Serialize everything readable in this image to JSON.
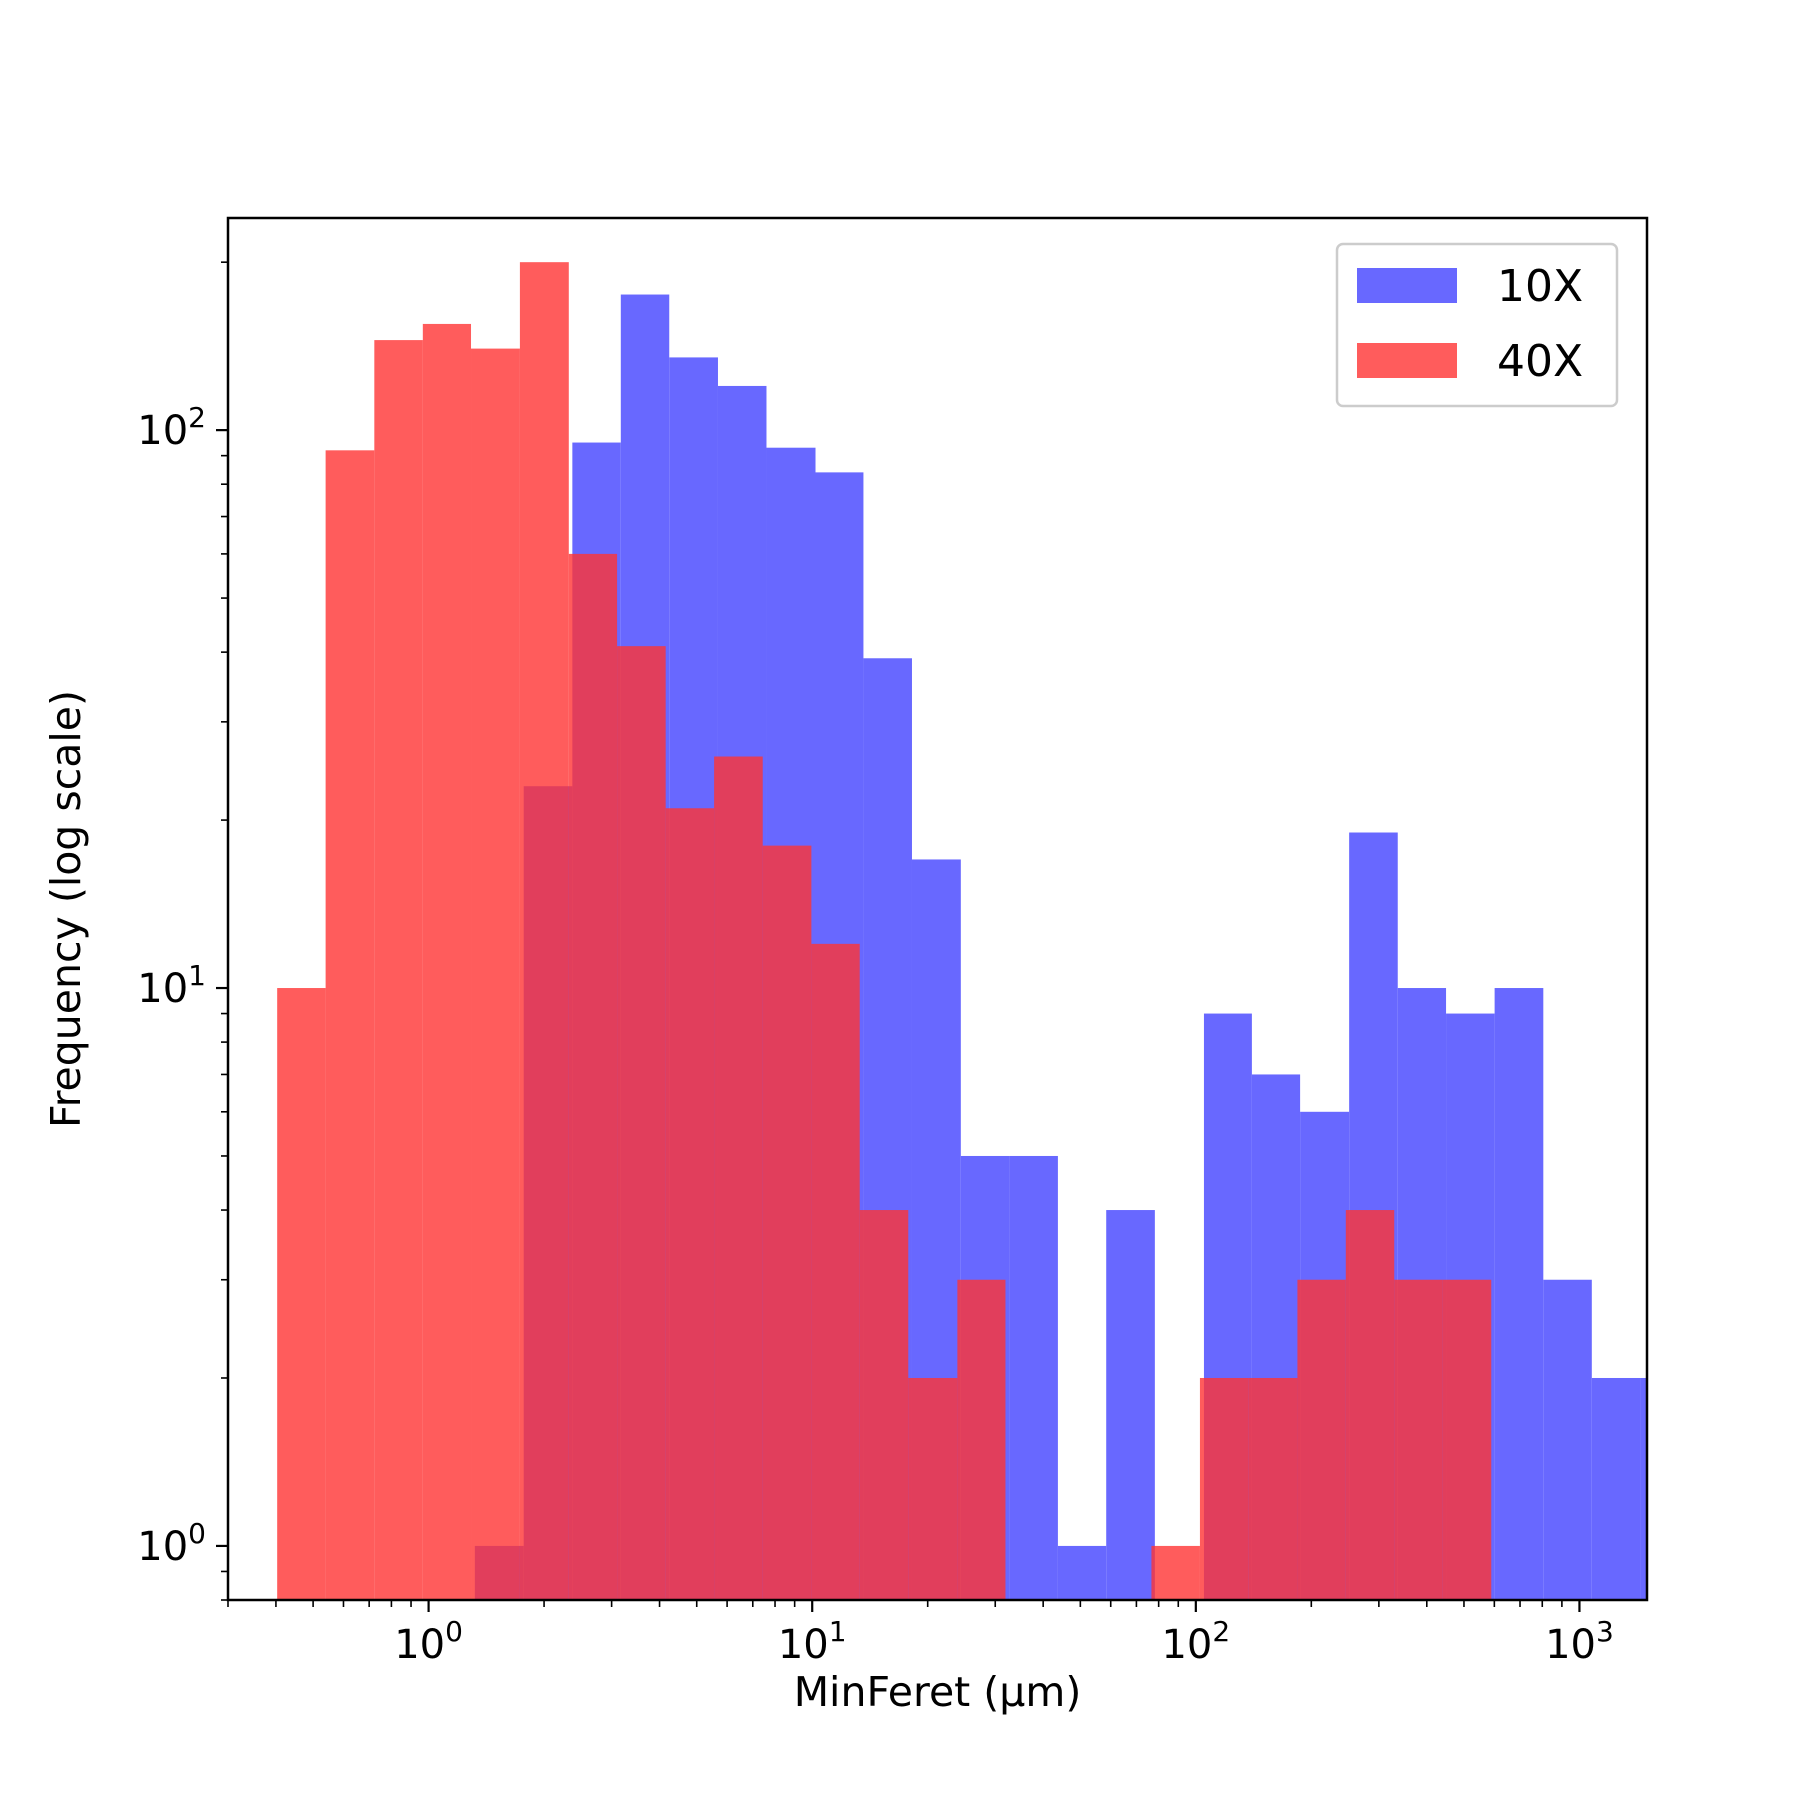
{
  "chart_data": {
    "type": "bar",
    "subtype": "histogram",
    "xscale": "log",
    "yscale": "log",
    "xlabel": "MinFeret (µm)",
    "ylabel": "Frequency (log scale)",
    "xlim": [
      0.3,
      1500
    ],
    "ylim": [
      0.8,
      240
    ],
    "grid": false,
    "legend_position": "top-right",
    "xticks": [
      {
        "value": 1,
        "base": "10",
        "exp": "0"
      },
      {
        "value": 10,
        "base": "10",
        "exp": "1"
      },
      {
        "value": 100,
        "base": "10",
        "exp": "2"
      },
      {
        "value": 1000,
        "base": "10",
        "exp": "3"
      }
    ],
    "yticks": [
      {
        "value": 1,
        "base": "10",
        "exp": "0"
      },
      {
        "value": 10,
        "base": "10",
        "exp": "1"
      },
      {
        "value": 100,
        "base": "10",
        "exp": "2"
      }
    ],
    "series": [
      {
        "name": "10X",
        "color": "#6868ff",
        "bin_edges": [
          1.32,
          1.77,
          2.37,
          3.17,
          4.24,
          5.68,
          7.6,
          10.2,
          13.6,
          18.2,
          24.4,
          32.6,
          43.7,
          58.4,
          78.2,
          105,
          140,
          187,
          251,
          336,
          449,
          601,
          805,
          1077,
          1442,
          1930
        ],
        "values": [
          1,
          23,
          95,
          175,
          135,
          120,
          93,
          84,
          39,
          17,
          5,
          5,
          1,
          4,
          0,
          9,
          7,
          6,
          19,
          10,
          9,
          10,
          3,
          2,
          2
        ]
      },
      {
        "name": "40X",
        "color": "#ff3333",
        "bin_edges": [
          0.403,
          0.539,
          0.722,
          0.966,
          1.29,
          1.73,
          2.32,
          3.1,
          4.15,
          5.55,
          7.43,
          9.95,
          13.3,
          17.8,
          23.9,
          31.9,
          42.7,
          57.2,
          76.6,
          102.5,
          137,
          184,
          246,
          329,
          440,
          589
        ],
        "values": [
          10,
          92,
          145,
          155,
          140,
          200,
          60,
          41,
          21,
          26,
          18,
          12,
          4,
          2,
          3,
          0,
          0,
          0,
          1,
          2,
          2,
          3,
          4,
          3,
          3
        ]
      }
    ]
  }
}
